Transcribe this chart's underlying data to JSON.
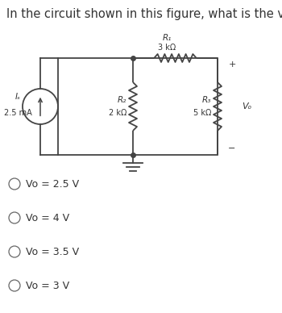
{
  "title": "In the circuit shown in this figure, what is the voltage Vₒ?",
  "title_fontsize": 10.5,
  "choices": [
    "Vo = 2.5 V",
    "Vo = 4 V",
    "Vo = 3.5 V",
    "Vo = 3 V"
  ],
  "circuit": {
    "current_source_label": "Iₛ",
    "current_source_value": "2.5 mA",
    "R1_label": "R₁",
    "R1_value": "3 kΩ",
    "R2_label": "R₂",
    "R2_value": "2 kΩ",
    "R3_label": "R₃",
    "R3_value": "5 kΩ",
    "Vo_label": "Vₒ"
  },
  "bg_color": "#ffffff",
  "text_color": "#333333",
  "cc": "#444444"
}
